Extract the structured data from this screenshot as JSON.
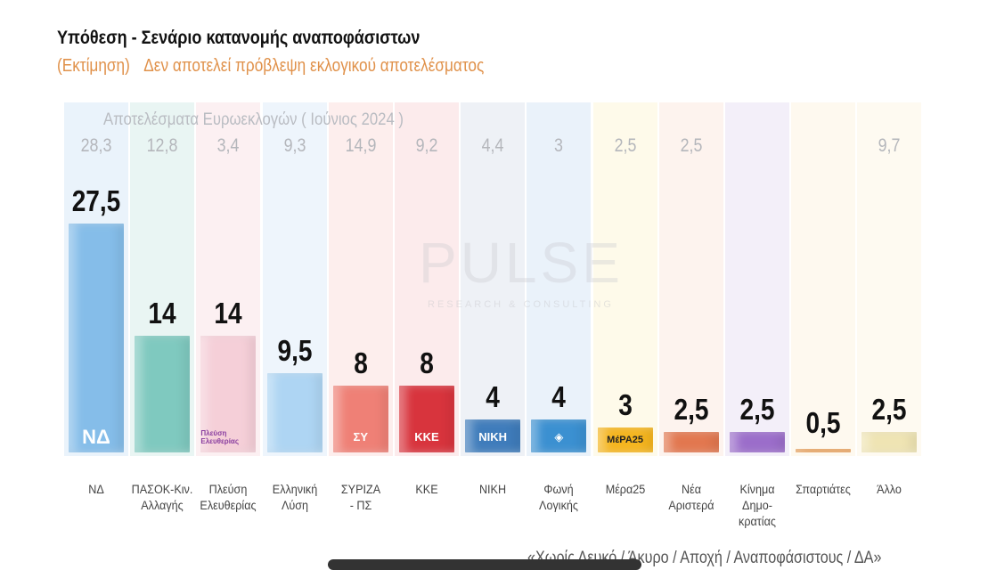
{
  "title": "Υπόθεση - Σενάριο κατανομής αναποφάσιστων",
  "subtitle_estimate": "(Εκτίμηση)",
  "subtitle_note": "Δεν αποτελεί πρόβλεψη εκλογικού αποτελέσματος",
  "footnote": "«Χωρίς Λευκό / Άκυρο / Αποχή / Αναποφάσιστους / ΔΑ»",
  "watermark": {
    "main": "PULSE",
    "sub": "RESEARCH & CONSULTING"
  },
  "chart_data": {
    "type": "bar",
    "title": "Υπόθεση - Σενάριο κατανομής αναποφάσιστων",
    "reference_row_title": "Αποτελέσματα Ευρωεκλογών  ( Ιούνιος 2024 )",
    "categories": [
      "ΝΔ",
      "ΠΑΣΟΚ-Κιν. Αλλαγής",
      "Πλεύση Ελευθερίας",
      "Ελληνική Λύση",
      "ΣΥΡΙΖΑ - ΠΣ",
      "ΚΚΕ",
      "ΝΙΚΗ",
      "Φωνή Λογικής",
      "Μέρα25",
      "Νέα Αριστερά",
      "Κίνημα Δημο-κρατίας",
      "Σπαρτιάτες",
      "Άλλο"
    ],
    "label_lines": [
      [
        "ΝΔ"
      ],
      [
        "ΠΑΣΟΚ-Κιν.",
        "Αλλαγής"
      ],
      [
        "Πλεύση",
        "Ελευθερίας"
      ],
      [
        "Ελληνική",
        "Λύση"
      ],
      [
        "ΣΥΡΙΖΑ",
        "- ΠΣ"
      ],
      [
        "ΚΚΕ"
      ],
      [
        "ΝΙΚΗ"
      ],
      [
        "Φωνή",
        "Λογικής"
      ],
      [
        "Μέρα25"
      ],
      [
        "Νέα",
        "Αριστερά"
      ],
      [
        "Κίνημα",
        "Δημο-",
        "κρατίας"
      ],
      [
        "Σπαρτιάτες"
      ],
      [
        "Άλλο"
      ]
    ],
    "values": [
      27.5,
      14,
      14,
      9.5,
      8,
      8,
      4,
      4,
      3,
      2.5,
      2.5,
      0.5,
      2.5
    ],
    "value_labels": [
      "27,5",
      "14",
      "14",
      "9,5",
      "8",
      "8",
      "4",
      "4",
      "3",
      "2,5",
      "2,5",
      "0,5",
      "2,5"
    ],
    "euro_2024": [
      "28,3",
      "12,8",
      "3,4",
      "9,3",
      "14,9",
      "9,2",
      "4,4",
      "3",
      "2,5",
      "2,5",
      "",
      "",
      "9,7"
    ],
    "bar_colors": [
      "#85bde9",
      "#7fc9bf",
      "#f5cfd8",
      "#aed5f3",
      "#ef8076",
      "#d8343d",
      "#3f7cbb",
      "#3b90d1",
      "#f5b51e",
      "#e2774f",
      "#9b6dca",
      "#e99b50",
      "#efe4b3"
    ],
    "band_colors": [
      "#eaf3fb",
      "#e9f5f3",
      "#fcf0f2",
      "#eef5fc",
      "#fdeeed",
      "#fcebec",
      "#eef1f6",
      "#eaf2fa",
      "#fefaea",
      "#fdf3ee",
      "#f3eff9",
      "#fef9ef",
      "#fefaf1"
    ],
    "logos": [
      "ΝΔ",
      "",
      "Πλεύση Ελευθερίας",
      "",
      "ΣΥ",
      "ΚΚΕ",
      "ΝΙΚΗ",
      "◈",
      "ΜέΡΑ25",
      "",
      "",
      "",
      ""
    ],
    "ylim": [
      0,
      30
    ]
  }
}
